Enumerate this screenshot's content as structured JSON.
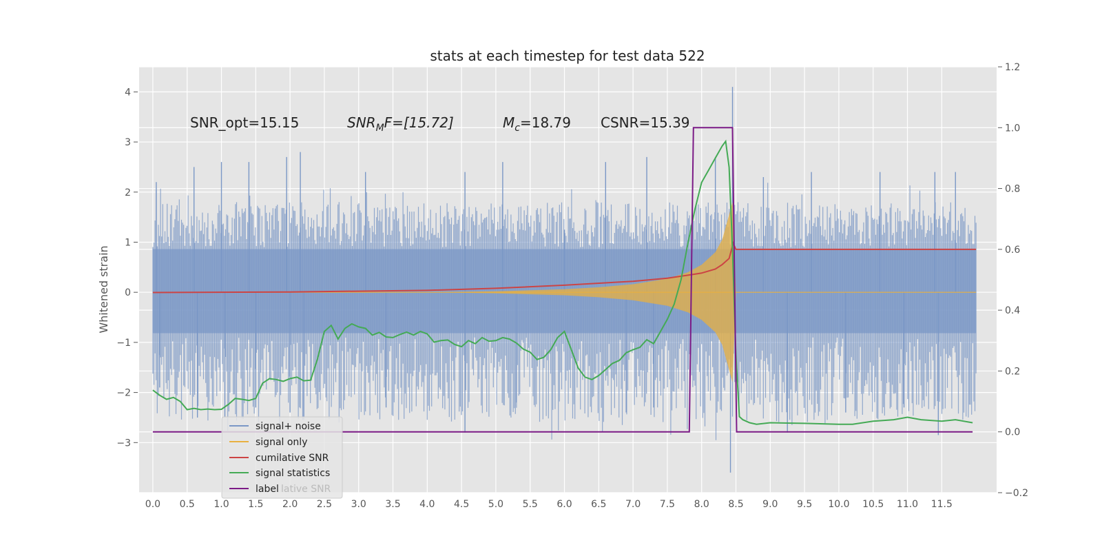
{
  "chart_data": {
    "type": "line",
    "title": "stats at each timestep for test data 522",
    "ylabel": "Whitened strain",
    "xlabel": "",
    "xlim": [
      -0.2,
      12.3
    ],
    "ylim": [
      -4.0,
      4.5
    ],
    "y2lim": [
      -0.2,
      1.2
    ],
    "grid": true,
    "x_ticks": [
      "0.0",
      "0.5",
      "1.0",
      "1.5",
      "2.0",
      "2.5",
      "3.0",
      "3.5",
      "4.0",
      "4.5",
      "5.0",
      "5.5",
      "6.0",
      "6.5",
      "7.0",
      "7.5",
      "8.0",
      "8.5",
      "9.0",
      "9.5",
      "10.0",
      "10.5",
      "11.0",
      "11.5"
    ],
    "y_ticks": [
      "4",
      "3",
      "2",
      "1",
      "0",
      "−1",
      "−2",
      "−3"
    ],
    "y2_ticks": [
      "1.2",
      "1.0",
      "0.8",
      "0.6",
      "0.4",
      "0.2",
      "0.0",
      "−0.2"
    ],
    "annotations": {
      "snr_opt": "SNR_opt=15.15",
      "snr_mf_base": "SNR",
      "snr_mf_sub": "M",
      "snr_mf_rest": "F=[15.72]",
      "mc_base": "M",
      "mc_sub": "c",
      "mc_rest": "=18.79",
      "csnr": "CSNR=15.39"
    },
    "legend_placement": "lower-left",
    "legend": [
      "signal+ noise",
      "signal only",
      "cumilative SNR",
      "signal statistics",
      "label"
    ],
    "legend_hidden_text": "lative SNR",
    "colors": {
      "noise": "#7a97c6",
      "signal": "#e8b040",
      "cumulative": "#cc4444",
      "statistics": "#44aa55",
      "label": "#7b1a86",
      "background": "#e5e5e5",
      "grid": "#ffffff"
    },
    "series": [
      {
        "name": "signal+ noise",
        "axis": "left",
        "envelope_x": [
          0.0,
          12.0
        ],
        "typical_low": -1.7,
        "typical_high": 1.8,
        "spikes": [
          [
            0.05,
            2.2
          ],
          [
            0.1,
            -1.9
          ],
          [
            0.6,
            2.5
          ],
          [
            0.65,
            -2.5
          ],
          [
            1.0,
            2.6
          ],
          [
            1.05,
            -2.5
          ],
          [
            1.4,
            2.6
          ],
          [
            1.5,
            -2.3
          ],
          [
            1.95,
            2.7
          ],
          [
            2.0,
            -2.4
          ],
          [
            2.15,
            2.8
          ],
          [
            2.2,
            -2.5
          ],
          [
            3.1,
            2.4
          ],
          [
            3.4,
            -2.3
          ],
          [
            4.55,
            2.4
          ],
          [
            4.55,
            -2.8
          ],
          [
            5.1,
            2.6
          ],
          [
            5.3,
            -2.2
          ],
          [
            6.0,
            1.25
          ],
          [
            6.6,
            2.6
          ],
          [
            6.9,
            -2.4
          ],
          [
            7.2,
            2.7
          ],
          [
            7.3,
            -2.3
          ],
          [
            8.2,
            2.7
          ],
          [
            8.45,
            4.1
          ],
          [
            8.42,
            -3.6
          ],
          [
            8.9,
            2.3
          ],
          [
            9.25,
            -2.8
          ],
          [
            9.6,
            2.4
          ],
          [
            10.1,
            -2.4
          ],
          [
            10.6,
            2.4
          ],
          [
            10.95,
            -2.3
          ],
          [
            11.4,
            2.4
          ],
          [
            11.45,
            -2.85
          ],
          [
            11.7,
            2.4
          ]
        ]
      },
      {
        "name": "signal only",
        "axis": "left",
        "x": [
          0.0,
          4.0,
          5.0,
          6.0,
          6.5,
          7.0,
          7.5,
          7.8,
          8.0,
          8.2,
          8.3,
          8.4,
          8.45,
          8.5,
          12.0
        ],
        "amplitude": [
          0.0,
          0.0,
          0.02,
          0.06,
          0.1,
          0.16,
          0.27,
          0.4,
          0.55,
          0.8,
          1.05,
          1.55,
          1.8,
          0.0,
          0.0
        ]
      },
      {
        "name": "cumilative SNR",
        "axis": "right",
        "x": [
          0.0,
          2.0,
          4.0,
          5.0,
          6.0,
          7.0,
          7.5,
          7.8,
          8.0,
          8.2,
          8.3,
          8.4,
          8.46,
          8.5,
          12.0
        ],
        "y": [
          0.458,
          0.46,
          0.465,
          0.472,
          0.482,
          0.495,
          0.505,
          0.515,
          0.522,
          0.535,
          0.55,
          0.57,
          0.62,
          0.6,
          0.6
        ]
      },
      {
        "name": "signal statistics",
        "axis": "right",
        "x": [
          0.0,
          0.1,
          0.2,
          0.3,
          0.4,
          0.5,
          0.6,
          0.7,
          0.8,
          0.9,
          1.0,
          1.1,
          1.2,
          1.3,
          1.4,
          1.5,
          1.6,
          1.7,
          1.8,
          1.9,
          2.0,
          2.1,
          2.2,
          2.3,
          2.4,
          2.5,
          2.6,
          2.7,
          2.8,
          2.9,
          3.0,
          3.1,
          3.2,
          3.3,
          3.4,
          3.5,
          3.6,
          3.7,
          3.8,
          3.9,
          4.0,
          4.1,
          4.2,
          4.3,
          4.4,
          4.5,
          4.6,
          4.7,
          4.8,
          4.9,
          5.0,
          5.1,
          5.2,
          5.3,
          5.4,
          5.5,
          5.6,
          5.7,
          5.8,
          5.9,
          6.0,
          6.1,
          6.2,
          6.3,
          6.4,
          6.5,
          6.6,
          6.7,
          6.8,
          6.9,
          7.0,
          7.1,
          7.2,
          7.3,
          7.4,
          7.5,
          7.6,
          7.7,
          7.8,
          7.9,
          8.0,
          8.1,
          8.2,
          8.3,
          8.35,
          8.4,
          8.45,
          8.5,
          8.55,
          8.6,
          8.7,
          8.8,
          9.0,
          9.5,
          10.0,
          10.2,
          10.5,
          10.8,
          11.0,
          11.2,
          11.5,
          11.7,
          11.95
        ],
        "y": [
          0.137,
          0.12,
          0.107,
          0.113,
          0.1,
          0.073,
          0.077,
          0.073,
          0.075,
          0.073,
          0.074,
          0.09,
          0.11,
          0.107,
          0.103,
          0.11,
          0.16,
          0.175,
          0.172,
          0.166,
          0.175,
          0.18,
          0.168,
          0.17,
          0.24,
          0.33,
          0.35,
          0.305,
          0.34,
          0.355,
          0.345,
          0.34,
          0.318,
          0.327,
          0.312,
          0.31,
          0.32,
          0.328,
          0.318,
          0.33,
          0.322,
          0.295,
          0.3,
          0.302,
          0.287,
          0.28,
          0.3,
          0.29,
          0.31,
          0.298,
          0.3,
          0.31,
          0.305,
          0.292,
          0.272,
          0.262,
          0.238,
          0.245,
          0.27,
          0.31,
          0.33,
          0.27,
          0.21,
          0.18,
          0.172,
          0.185,
          0.205,
          0.225,
          0.235,
          0.26,
          0.27,
          0.278,
          0.303,
          0.29,
          0.33,
          0.37,
          0.42,
          0.5,
          0.62,
          0.73,
          0.82,
          0.86,
          0.9,
          0.94,
          0.955,
          0.87,
          0.6,
          0.25,
          0.05,
          0.04,
          0.03,
          0.025,
          0.03,
          0.028,
          0.025,
          0.025,
          0.035,
          0.04,
          0.048,
          0.04,
          0.035,
          0.04,
          0.03
        ]
      },
      {
        "name": "label",
        "axis": "right",
        "x": [
          0.0,
          7.82,
          7.88,
          8.45,
          8.51,
          11.95
        ],
        "y": [
          0.0,
          0.0,
          1.0,
          1.0,
          0.0,
          0.0
        ]
      }
    ]
  }
}
